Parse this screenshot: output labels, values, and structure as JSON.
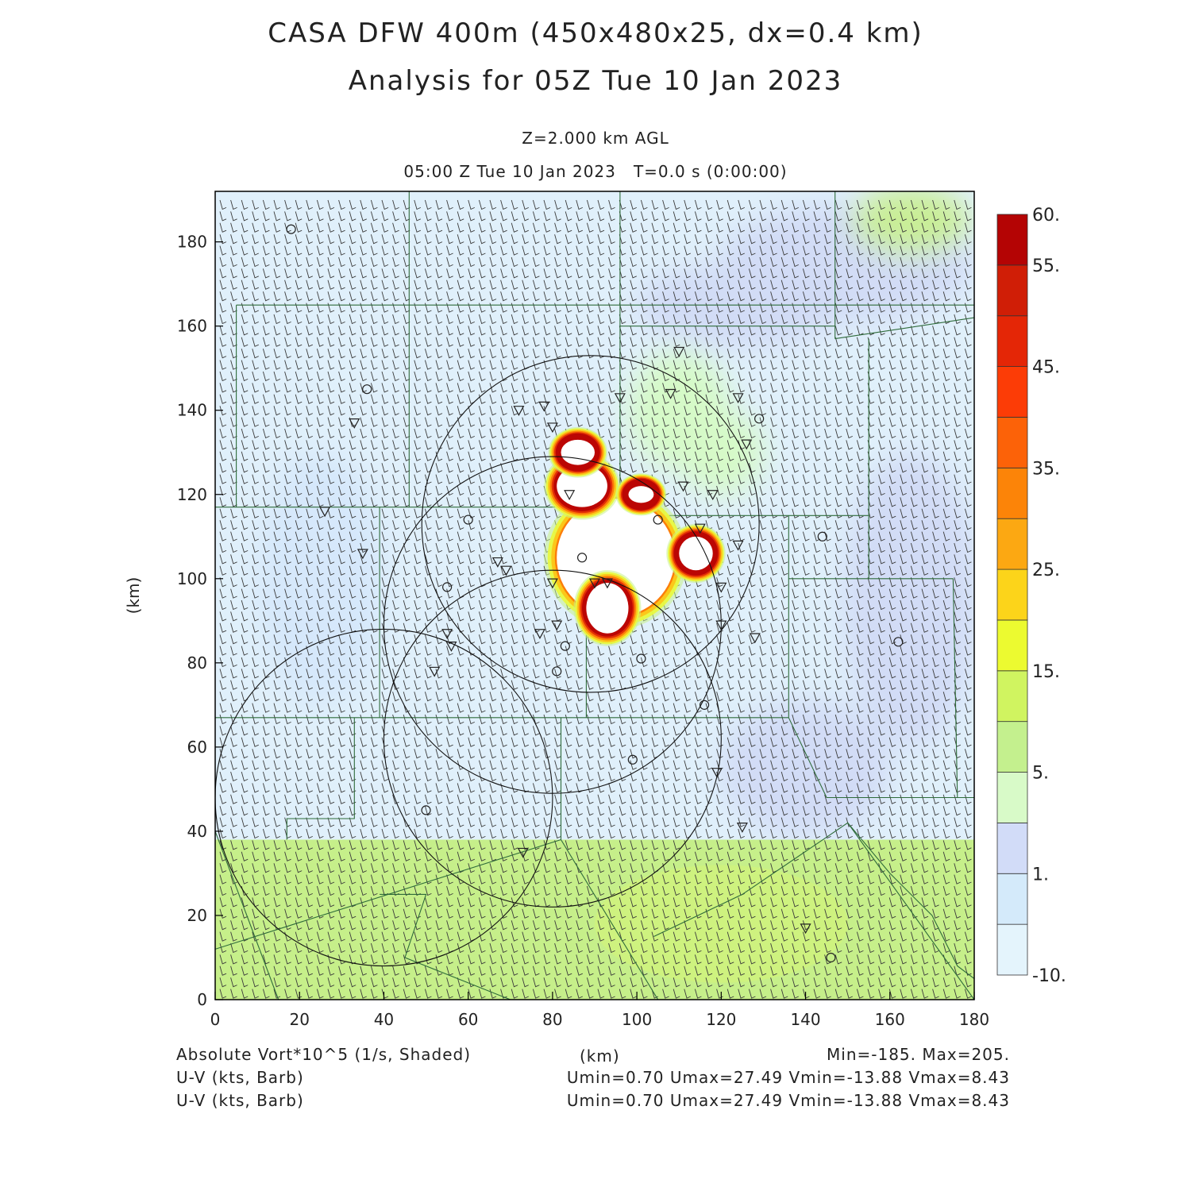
{
  "title_line1": "CASA DFW 400m (450x480x25, dx=0.4 km)",
  "title_line2": "Analysis for 05Z Tue 10 Jan 2023",
  "level_label": "Z=2.000 km AGL",
  "time_label": "05:00 Z Tue 10 Jan 2023   T=0.0 s (0:00:00)",
  "footer": {
    "field1": "Absolute Vort*10^5 (1/s, Shaded)",
    "xunit": "(km)",
    "minmax": "Min=-185. Max=205.",
    "field2": "U-V (kts, Barb)",
    "stats2": "Umin=0.70 Umax=27.49 Vmin=-13.88 Vmax=8.43",
    "field3": "U-V (kts, Barb)",
    "stats3": "Umin=0.70 Umax=27.49 Vmin=-13.88 Vmax=8.43"
  },
  "chart_data": {
    "type": "heatmap",
    "xlabel": "",
    "ylabel": "(km)",
    "xlim": [
      0,
      180
    ],
    "ylim": [
      0,
      192
    ],
    "xticks": [
      0,
      20,
      40,
      60,
      80,
      100,
      120,
      140,
      160,
      180
    ],
    "yticks": [
      0,
      20,
      40,
      60,
      80,
      100,
      120,
      140,
      160,
      180
    ],
    "colorbar": {
      "labels": [
        "-10.",
        "1.",
        "5.",
        "15.",
        "25.",
        "35.",
        "45.",
        "55.",
        "60."
      ],
      "colors": [
        "#e4f4fc",
        "#d4eafa",
        "#d2dcf8",
        "#d8fac8",
        "#c4f08e",
        "#d0f460",
        "#ecfa30",
        "#fcd41a",
        "#fca812",
        "#fc8408",
        "#fc6208",
        "#fc3c06",
        "#e42606",
        "#d01e06",
        "#b40404"
      ]
    },
    "vorticity_regions": [
      {
        "level": "low",
        "color": "#c6ef8a",
        "x_range": [
          0,
          180
        ],
        "y_range": [
          0,
          38
        ]
      },
      {
        "level": "core",
        "center": [
          95,
          105
        ],
        "radius_km": [
          14,
          14
        ]
      },
      {
        "level": "core",
        "center": [
          93,
          93
        ],
        "radius_km": [
          5,
          6
        ]
      },
      {
        "level": "core",
        "center": [
          87,
          122
        ],
        "radius_km": [
          6,
          5
        ]
      },
      {
        "level": "core",
        "center": [
          86,
          130
        ],
        "radius_km": [
          4,
          3
        ]
      },
      {
        "level": "core",
        "center": [
          114,
          106
        ],
        "radius_km": [
          4,
          4
        ]
      },
      {
        "level": "core",
        "center": [
          101,
          120
        ],
        "radius_km": [
          3,
          2
        ]
      }
    ],
    "range_rings": [
      {
        "center": [
          89,
          113
        ],
        "radius": 40
      },
      {
        "center": [
          80,
          89
        ],
        "radius": 40
      },
      {
        "center": [
          80,
          62
        ],
        "radius": 40
      },
      {
        "center": [
          40,
          48
        ],
        "radius": 40
      }
    ],
    "stations_circle": [
      [
        18,
        183
      ],
      [
        36,
        145
      ],
      [
        60,
        114
      ],
      [
        55,
        98
      ],
      [
        87,
        105
      ],
      [
        105,
        114
      ],
      [
        83,
        84
      ],
      [
        81,
        78
      ],
      [
        101,
        81
      ],
      [
        99,
        57
      ],
      [
        129,
        138
      ],
      [
        144,
        110
      ],
      [
        162,
        85
      ],
      [
        116,
        70
      ],
      [
        50,
        45
      ],
      [
        146,
        10
      ]
    ],
    "stations_triangle": [
      [
        33,
        137
      ],
      [
        26,
        116
      ],
      [
        35,
        106
      ],
      [
        55,
        87
      ],
      [
        56,
        84
      ],
      [
        52,
        78
      ],
      [
        67,
        104
      ],
      [
        69,
        102
      ],
      [
        72,
        140
      ],
      [
        78,
        141
      ],
      [
        80,
        136
      ],
      [
        84,
        120
      ],
      [
        80,
        99
      ],
      [
        81,
        89
      ],
      [
        77,
        87
      ],
      [
        90,
        99
      ],
      [
        93,
        99
      ],
      [
        96,
        143
      ],
      [
        108,
        144
      ],
      [
        110,
        154
      ],
      [
        111,
        122
      ],
      [
        118,
        120
      ],
      [
        115,
        112
      ],
      [
        124,
        108
      ],
      [
        120,
        98
      ],
      [
        120,
        89
      ],
      [
        128,
        86
      ],
      [
        126,
        132
      ],
      [
        124,
        143
      ],
      [
        119,
        54
      ],
      [
        125,
        41
      ],
      [
        73,
        35
      ],
      [
        140,
        17
      ]
    ],
    "wind_barb": {
      "u_kts_min": 0.7,
      "u_kts_max": 27.49,
      "v_kts_min": -13.88,
      "v_kts_max": 8.43
    }
  }
}
